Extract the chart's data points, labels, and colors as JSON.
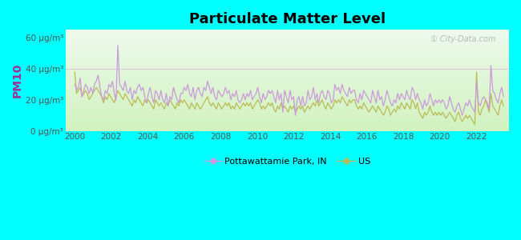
{
  "title": "Particulate Matter Level",
  "ylabel": "PM10",
  "background_outer": "#00FFFF",
  "ylim": [
    0,
    65
  ],
  "yticks": [
    0,
    20,
    40,
    60
  ],
  "ytick_labels": [
    "0 μg/m³",
    "20 μg/m³",
    "40 μg/m³",
    "60 μg/m³"
  ],
  "xlim": [
    1999.5,
    2023.8
  ],
  "xticks": [
    2000,
    2002,
    2004,
    2006,
    2008,
    2010,
    2012,
    2014,
    2016,
    2018,
    2020,
    2022
  ],
  "city_color": "#cc99dd",
  "us_color": "#bbbb55",
  "legend_city": "Pottawattamie Park, IN",
  "legend_us": "US",
  "watermark": "① City-Data.com",
  "grid_color": "#cccccc",
  "city_data": [
    30,
    26,
    28,
    34,
    22,
    26,
    30,
    28,
    24,
    28,
    24,
    30,
    32,
    36,
    28,
    22,
    20,
    26,
    24,
    30,
    28,
    32,
    24,
    20,
    55,
    30,
    28,
    26,
    32,
    26,
    24,
    28,
    20,
    26,
    24,
    28,
    30,
    26,
    28,
    22,
    18,
    24,
    28,
    22,
    18,
    26,
    24,
    20,
    26,
    20,
    18,
    24,
    16,
    22,
    20,
    28,
    24,
    20,
    18,
    24,
    24,
    28,
    26,
    30,
    24,
    22,
    28,
    20,
    26,
    28,
    24,
    22,
    28,
    26,
    32,
    28,
    24,
    28,
    22,
    20,
    26,
    24,
    22,
    24,
    28,
    24,
    26,
    20,
    24,
    22,
    26,
    20,
    18,
    20,
    24,
    20,
    24,
    22,
    26,
    20,
    22,
    24,
    28,
    22,
    18,
    24,
    20,
    22,
    26,
    24,
    26,
    22,
    18,
    26,
    20,
    24,
    12,
    26,
    22,
    18,
    26,
    20,
    22,
    10,
    20,
    22,
    16,
    22,
    16,
    18,
    26,
    20,
    22,
    28,
    20,
    24,
    18,
    24,
    26,
    22,
    20,
    26,
    24,
    18,
    20,
    30,
    26,
    28,
    24,
    30,
    26,
    24,
    22,
    28,
    24,
    26,
    26,
    20,
    18,
    24,
    20,
    26,
    24,
    22,
    20,
    18,
    26,
    22,
    18,
    26,
    20,
    22,
    16,
    20,
    26,
    22,
    18,
    16,
    20,
    18,
    24,
    20,
    24,
    22,
    20,
    26,
    22,
    20,
    28,
    26,
    20,
    24,
    20,
    18,
    14,
    20,
    16,
    18,
    24,
    20,
    16,
    20,
    18,
    20,
    18,
    20,
    18,
    14,
    16,
    22,
    18,
    14,
    12,
    16,
    18,
    14,
    10,
    14,
    18,
    16,
    20,
    16,
    14,
    12,
    32,
    18,
    16,
    20,
    22,
    20,
    18,
    14,
    42,
    26,
    24,
    20,
    18,
    24,
    28,
    22
  ],
  "us_data": [
    38,
    24,
    26,
    28,
    22,
    24,
    26,
    24,
    20,
    22,
    24,
    26,
    28,
    26,
    24,
    22,
    18,
    22,
    20,
    24,
    22,
    20,
    18,
    22,
    26,
    24,
    22,
    20,
    24,
    22,
    20,
    18,
    16,
    20,
    18,
    22,
    20,
    18,
    16,
    20,
    18,
    20,
    18,
    16,
    14,
    20,
    18,
    16,
    18,
    16,
    14,
    18,
    16,
    20,
    18,
    16,
    14,
    18,
    16,
    20,
    18,
    20,
    18,
    16,
    14,
    18,
    16,
    14,
    18,
    16,
    14,
    16,
    18,
    20,
    22,
    18,
    16,
    18,
    16,
    14,
    18,
    16,
    14,
    16,
    18,
    16,
    18,
    14,
    16,
    14,
    18,
    16,
    14,
    16,
    18,
    16,
    18,
    16,
    18,
    14,
    16,
    18,
    20,
    18,
    14,
    16,
    14,
    16,
    18,
    16,
    18,
    14,
    12,
    16,
    14,
    18,
    14,
    16,
    14,
    12,
    16,
    14,
    16,
    12,
    14,
    16,
    14,
    16,
    12,
    14,
    16,
    14,
    16,
    18,
    16,
    20,
    16,
    18,
    20,
    16,
    14,
    18,
    16,
    14,
    16,
    20,
    18,
    20,
    18,
    22,
    20,
    18,
    16,
    20,
    18,
    20,
    20,
    16,
    14,
    16,
    14,
    18,
    16,
    14,
    12,
    14,
    16,
    14,
    12,
    16,
    14,
    12,
    10,
    12,
    16,
    14,
    10,
    12,
    14,
    12,
    16,
    14,
    18,
    16,
    14,
    18,
    16,
    14,
    20,
    18,
    14,
    18,
    12,
    10,
    8,
    12,
    10,
    12,
    16,
    12,
    10,
    12,
    10,
    12,
    10,
    12,
    10,
    8,
    10,
    12,
    10,
    8,
    6,
    10,
    12,
    8,
    6,
    8,
    10,
    8,
    10,
    8,
    6,
    4,
    38,
    12,
    10,
    14,
    16,
    20,
    16,
    12,
    24,
    16,
    14,
    12,
    10,
    16,
    20,
    16
  ]
}
